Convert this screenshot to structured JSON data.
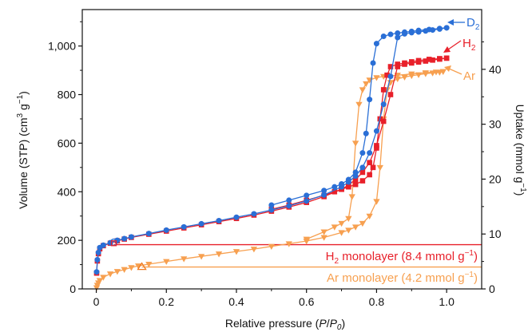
{
  "chart_data": {
    "type": "line",
    "xlabel": {
      "main": "Relative pressure (",
      "it1": "P",
      "slash": "/",
      "it2": "P",
      "sub": "0",
      "close": ")"
    },
    "ylabel_left": {
      "main": "Volume (STP) (cm",
      "sup": "3",
      "rest": " g",
      "sup2": "−1",
      "close": ")"
    },
    "ylabel_right": {
      "main": "Uptake (mmol g",
      "sup": "−1",
      "close": ")"
    },
    "xlim": [
      -0.04,
      1.1
    ],
    "ylim_left": [
      0,
      1150
    ],
    "ylim_right_factor": 22.6,
    "x_ticks": [
      "0",
      "0.2",
      "0.4",
      "0.6",
      "0.8",
      "1.0"
    ],
    "x_tick_values": [
      0,
      0.2,
      0.4,
      0.6,
      0.8,
      1.0
    ],
    "y_left_ticks": [
      "0",
      "200",
      "400",
      "600",
      "800",
      "1,000"
    ],
    "y_left_tick_values": [
      0,
      200,
      400,
      600,
      800,
      1000
    ],
    "y_right_ticks": [
      "0",
      "10",
      "20",
      "30",
      "40"
    ],
    "y_right_tick_values": [
      0,
      10,
      20,
      30,
      40
    ],
    "colors": {
      "D2": "#2a6fd6",
      "H2": "#e8202a",
      "Ar": "#f7a050"
    },
    "series": [
      {
        "name": "D2",
        "label_main": "D",
        "label_sub": "2",
        "marker": "circle",
        "adsorption": {
          "x": [
            0.001,
            0.003,
            0.006,
            0.01,
            0.02,
            0.04,
            0.06,
            0.08,
            0.1,
            0.15,
            0.2,
            0.25,
            0.3,
            0.35,
            0.4,
            0.45,
            0.5,
            0.55,
            0.6,
            0.65,
            0.7,
            0.72,
            0.74,
            0.76,
            0.78,
            0.8,
            0.82,
            0.84,
            0.86,
            0.88,
            0.9,
            0.92,
            0.94,
            0.96,
            0.98,
            1.0
          ],
          "y": [
            70,
            120,
            150,
            170,
            180,
            190,
            200,
            207,
            214,
            228,
            242,
            255,
            268,
            281,
            295,
            309,
            325,
            342,
            362,
            387,
            420,
            440,
            465,
            500,
            560,
            650,
            760,
            875,
            1035,
            1050,
            1055,
            1058,
            1062,
            1066,
            1070,
            1075
          ]
        },
        "desorption": {
          "x": [
            1.0,
            0.98,
            0.95,
            0.92,
            0.9,
            0.88,
            0.86,
            0.84,
            0.82,
            0.8,
            0.79,
            0.78,
            0.77,
            0.76,
            0.74,
            0.72,
            0.7,
            0.68,
            0.65,
            0.6,
            0.55,
            0.5
          ],
          "y": [
            1075,
            1072,
            1068,
            1064,
            1060,
            1057,
            1053,
            1048,
            1040,
            1010,
            930,
            780,
            640,
            560,
            480,
            450,
            432,
            420,
            405,
            385,
            365,
            345
          ]
        }
      },
      {
        "name": "H2",
        "label_main": "H",
        "label_sub": "2",
        "marker": "square",
        "adsorption": {
          "x": [
            0.001,
            0.003,
            0.006,
            0.01,
            0.02,
            0.04,
            0.06,
            0.08,
            0.1,
            0.15,
            0.2,
            0.25,
            0.3,
            0.35,
            0.4,
            0.45,
            0.5,
            0.55,
            0.6,
            0.65,
            0.7,
            0.72,
            0.74,
            0.76,
            0.78,
            0.8,
            0.82,
            0.84,
            0.86,
            0.88,
            0.9,
            0.92,
            0.94,
            0.96,
            0.98,
            1.0
          ],
          "y": [
            65,
            115,
            145,
            165,
            178,
            188,
            198,
            205,
            212,
            225,
            238,
            251,
            264,
            277,
            290,
            304,
            320,
            337,
            356,
            380,
            410,
            428,
            450,
            480,
            520,
            590,
            690,
            800,
            915,
            925,
            930,
            934,
            938,
            942,
            946,
            950
          ]
        },
        "desorption": {
          "x": [
            1.0,
            0.98,
            0.95,
            0.92,
            0.9,
            0.88,
            0.86,
            0.84,
            0.83,
            0.82,
            0.81,
            0.8,
            0.79,
            0.78,
            0.76,
            0.74,
            0.72,
            0.7,
            0.68,
            0.65,
            0.6,
            0.55,
            0.5
          ],
          "y": [
            950,
            948,
            945,
            940,
            935,
            930,
            925,
            915,
            880,
            820,
            700,
            580,
            500,
            470,
            445,
            430,
            420,
            410,
            400,
            385,
            365,
            345,
            328
          ]
        }
      },
      {
        "name": "Ar",
        "label_main": "Ar",
        "label_sub": "",
        "marker": "triangle",
        "adsorption": {
          "x": [
            0.001,
            0.003,
            0.006,
            0.01,
            0.02,
            0.04,
            0.06,
            0.08,
            0.1,
            0.12,
            0.15,
            0.2,
            0.25,
            0.3,
            0.35,
            0.4,
            0.45,
            0.5,
            0.55,
            0.6,
            0.65,
            0.7,
            0.72,
            0.74,
            0.76,
            0.78,
            0.8,
            0.81,
            0.82,
            0.83,
            0.84,
            0.86,
            0.88,
            0.9,
            0.92,
            0.94,
            0.96,
            0.98,
            0.99
          ],
          "y": [
            5,
            15,
            25,
            35,
            48,
            62,
            72,
            80,
            88,
            95,
            102,
            113,
            124,
            134,
            144,
            154,
            164,
            175,
            186,
            197,
            212,
            232,
            242,
            255,
            270,
            300,
            360,
            500,
            700,
            820,
            850,
            865,
            872,
            878,
            882,
            886,
            889,
            892,
            895
          ]
        },
        "desorption": {
          "x": [
            0.99,
            0.97,
            0.94,
            0.9,
            0.86,
            0.82,
            0.8,
            0.78,
            0.77,
            0.76,
            0.75,
            0.74,
            0.73,
            0.72,
            0.7,
            0.68,
            0.65,
            0.6
          ],
          "y": [
            895,
            893,
            890,
            885,
            880,
            875,
            870,
            860,
            845,
            820,
            760,
            600,
            380,
            290,
            270,
            255,
            235,
            205
          ]
        }
      }
    ],
    "monolayers": [
      {
        "series": "H2",
        "y": 182,
        "x_start": 0.05,
        "label_main": "H",
        "label_sub": "2",
        "label_rest": " monolayer (8.4 mmol g",
        "label_sup": "−1",
        "label_close": ")"
      },
      {
        "series": "Ar",
        "y": 90,
        "x_start": 0.13,
        "label_main": "Ar monolayer (4.2 mmol g",
        "label_sub": "",
        "label_rest": "",
        "label_sup": "−1",
        "label_close": ")"
      }
    ]
  }
}
